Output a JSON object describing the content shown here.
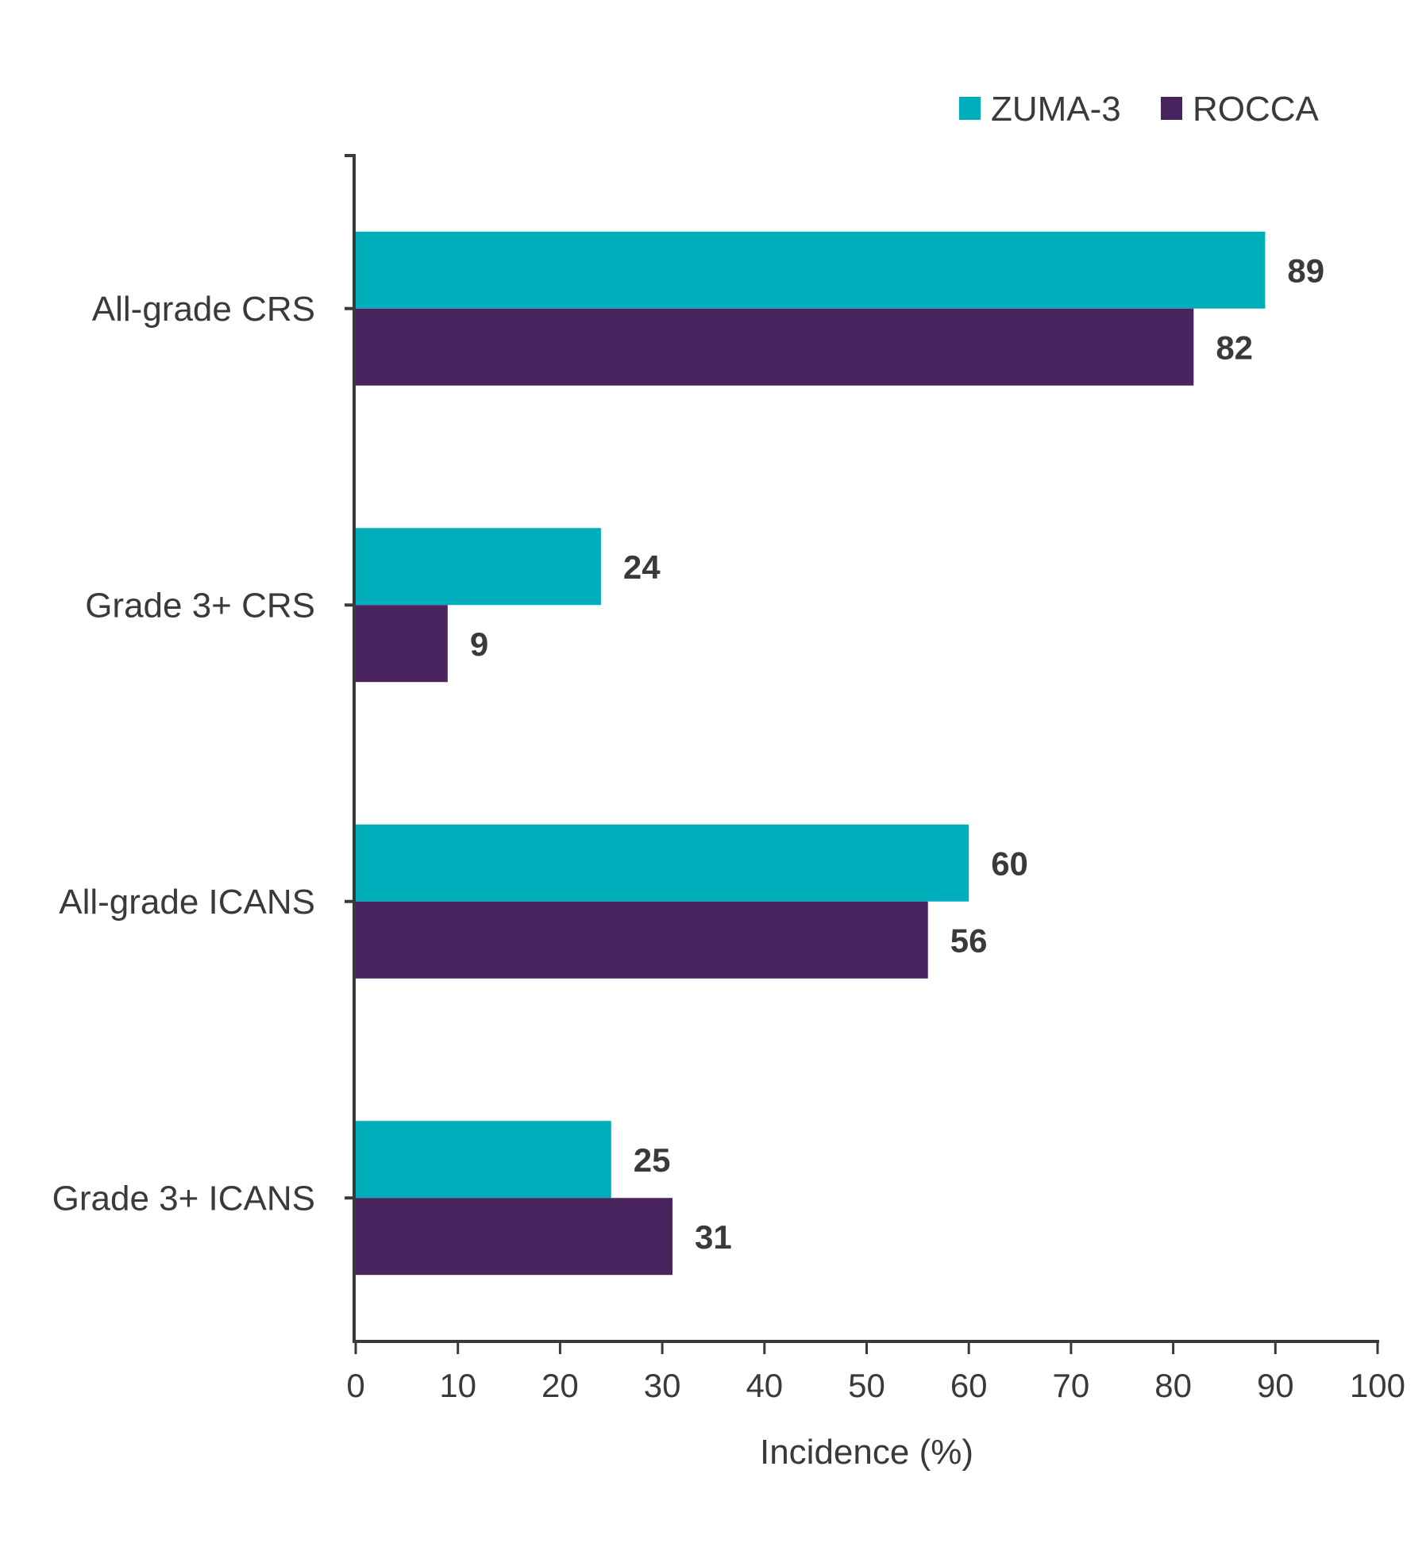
{
  "chart_data": {
    "type": "bar",
    "orientation": "horizontal",
    "title": "",
    "categories": [
      "All-grade CRS",
      "Grade 3+ CRS",
      "All-grade ICANS",
      "Grade 3+ ICANS"
    ],
    "series": [
      {
        "name": "ZUMA-3",
        "color": "#00aebb",
        "values": [
          89,
          24,
          60,
          25
        ]
      },
      {
        "name": "ROCCA",
        "color": "#4a245e",
        "values": [
          82,
          9,
          56,
          31
        ]
      }
    ],
    "xlabel": "Incidence (%)",
    "ylabel": "",
    "xlim": [
      0,
      100
    ],
    "x_ticks": [
      0,
      10,
      20,
      30,
      40,
      50,
      60,
      70,
      80,
      90,
      100
    ],
    "x_tick_labels": [
      "0",
      "10",
      "20",
      "30",
      "40",
      "50",
      "60",
      "70",
      "80",
      "90",
      "100"
    ],
    "data_labels": true,
    "grid": false,
    "legend_position": "top-right"
  }
}
